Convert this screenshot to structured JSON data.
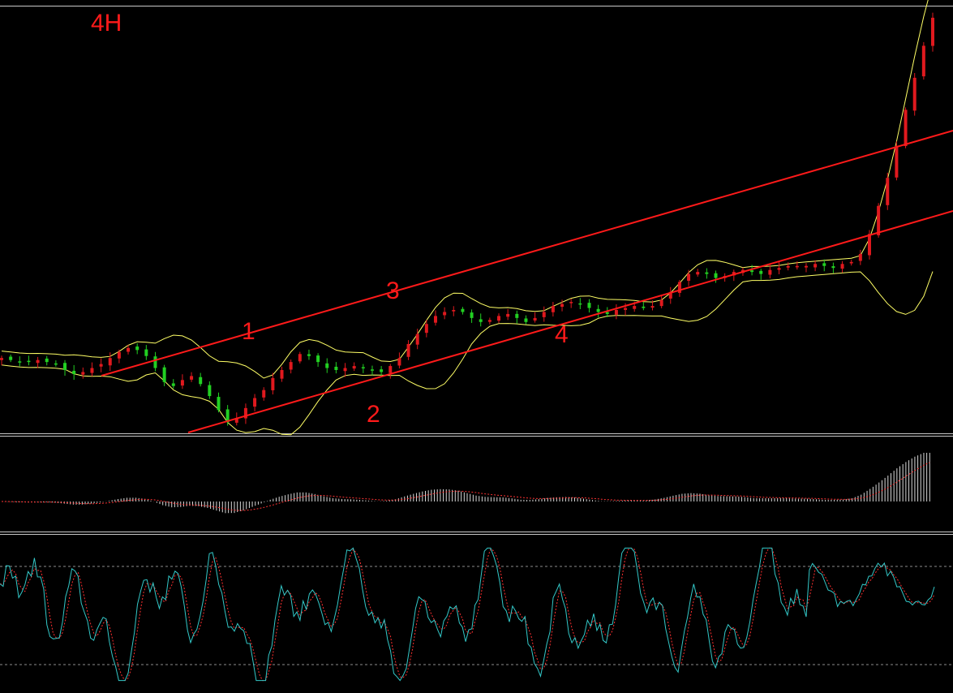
{
  "chart_label": "4H",
  "colors": {
    "background": "#000000",
    "bull": "#e0191e",
    "bear": "#22d022",
    "bands": "#ffff66",
    "channel": "#ff1a1a",
    "histogram": "#d8d8d8",
    "signal": "#ff3333",
    "stoch_main": "#33c8c8",
    "stoch_signal": "#ff3030",
    "levels": "#8c8c8c",
    "separator": "#c8c8c8"
  },
  "chart_data": [
    {
      "panel": "price",
      "type": "candlestick",
      "indicators": [
        "bollinger-bands"
      ],
      "grid": false,
      "channel_line_labels": [
        "1",
        "2",
        "3",
        "4"
      ],
      "close": [
        0.46,
        0.45,
        0.44,
        0.44,
        0.45,
        0.44,
        0.43,
        0.4,
        0.38,
        0.39,
        0.41,
        0.43,
        0.46,
        0.49,
        0.51,
        0.5,
        0.47,
        0.41,
        0.34,
        0.32,
        0.35,
        0.37,
        0.33,
        0.27,
        0.2,
        0.14,
        0.16,
        0.21,
        0.26,
        0.3,
        0.36,
        0.4,
        0.44,
        0.48,
        0.47,
        0.44,
        0.41,
        0.4,
        0.41,
        0.42,
        0.41,
        0.4,
        0.39,
        0.42,
        0.46,
        0.53,
        0.58,
        0.63,
        0.67,
        0.69,
        0.7,
        0.69,
        0.66,
        0.64,
        0.65,
        0.67,
        0.68,
        0.66,
        0.64,
        0.66,
        0.69,
        0.72,
        0.73,
        0.74,
        0.73,
        0.71,
        0.69,
        0.68,
        0.7,
        0.71,
        0.72,
        0.71,
        0.72,
        0.75,
        0.79,
        0.84,
        0.88,
        0.89,
        0.88,
        0.86,
        0.87,
        0.89,
        0.9,
        0.89,
        0.88,
        0.9,
        0.91,
        0.92,
        0.92,
        0.92,
        0.93,
        0.92,
        0.91,
        0.93,
        0.94,
        0.98,
        1.08,
        1.22,
        1.36,
        1.52,
        1.7,
        1.86,
        2.02,
        2.16
      ]
    },
    {
      "panel": "oscillator",
      "type": "histogram",
      "series": [
        "histogram",
        "signal"
      ],
      "baseline": 0,
      "grid": false
    },
    {
      "panel": "stochastic",
      "type": "line",
      "series": [
        "main",
        "signal"
      ],
      "levels": [
        20,
        80
      ],
      "ylim": [
        0,
        100
      ],
      "grid": false
    }
  ]
}
